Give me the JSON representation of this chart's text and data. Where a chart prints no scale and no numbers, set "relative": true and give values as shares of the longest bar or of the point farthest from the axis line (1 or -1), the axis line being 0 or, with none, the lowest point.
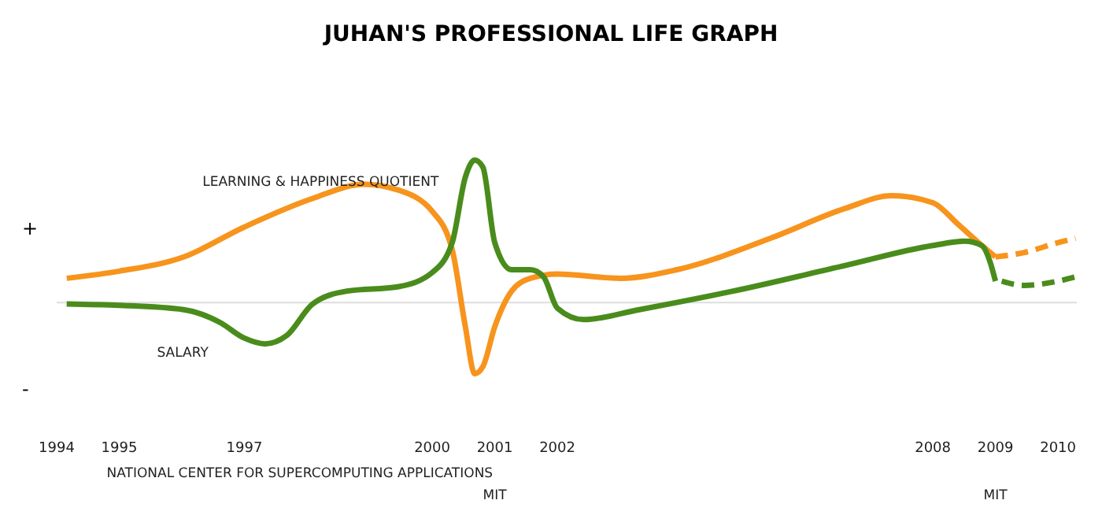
{
  "chart_data": {
    "type": "line",
    "title": "JUHAN'S PROFESSIONAL LIFE GRAPH",
    "relative": true,
    "marker": "none",
    "xlim": [
      1994,
      2010.3
    ],
    "xticks": [
      1994,
      1995,
      1997,
      2000,
      2001,
      2002,
      2008,
      2009,
      2010
    ],
    "annotations": [
      "+",
      "-",
      "NATIONAL CENTER FOR SUPERCOMPUTING APPLICATIONS",
      "MIT",
      "MIT"
    ],
    "series": [
      {
        "name": "LEARNING & HAPPINESS QUOTIENT",
        "color": "#f7941d",
        "x": [
          1994.16,
          1995,
          1996.03,
          1997,
          1998.09,
          1998.91,
          1999.45,
          2000,
          2000.32,
          2000.53,
          2000.68,
          2000.81,
          2001,
          2001.27,
          2001.57,
          2002,
          2003.01,
          2003.91,
          2005.4,
          2006.6,
          2007.34,
          2008,
          2008.4,
          2008.73,
          2009
        ],
        "values": [
          0.17,
          0.22,
          0.32,
          0.53,
          0.73,
          0.83,
          0.79,
          0.64,
          0.37,
          -0.17,
          -0.5,
          -0.45,
          -0.17,
          0.08,
          0.17,
          0.2,
          0.17,
          0.23,
          0.45,
          0.66,
          0.75,
          0.7,
          0.55,
          0.42,
          0.32
        ]
      },
      {
        "name": "SALARY",
        "color": "#4a8c1c",
        "x": [
          1994.16,
          1995,
          1996.03,
          1996.61,
          1997,
          1997.33,
          1997.68,
          1998.09,
          1998.64,
          1999.45,
          2000,
          2000.32,
          2000.53,
          2000.68,
          2000.81,
          2001,
          2001.27,
          2001.57,
          2001.78,
          2002,
          2002.42,
          2003.31,
          2004.81,
          2006.6,
          2008,
          2008.51,
          2008.78,
          2008.91,
          2009
        ],
        "values": [
          -0.01,
          -0.02,
          -0.05,
          -0.14,
          -0.25,
          -0.29,
          -0.23,
          -0.01,
          0.08,
          0.11,
          0.21,
          0.42,
          0.88,
          1,
          0.95,
          0.42,
          0.23,
          0.23,
          0.18,
          -0.04,
          -0.12,
          -0.05,
          0.08,
          0.26,
          0.4,
          0.43,
          0.4,
          0.29,
          0.15
        ]
      },
      {
        "color": "#f7941d",
        "line_style": "dashed",
        "x": [
          2009,
          2009.45,
          2010,
          2010.28
        ],
        "values": [
          0.32,
          0.35,
          0.42,
          0.45
        ]
      },
      {
        "color": "#4a8c1c",
        "line_style": "dashed",
        "x": [
          2009.1,
          2009.45,
          2010,
          2010.28
        ],
        "values": [
          0.15,
          0.12,
          0.15,
          0.18
        ]
      }
    ]
  }
}
